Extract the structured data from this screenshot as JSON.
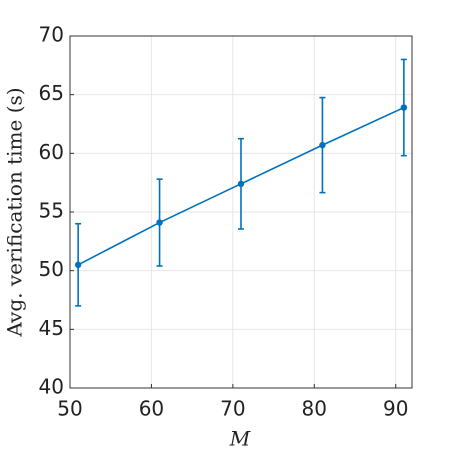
{
  "chart_data": {
    "type": "line",
    "xlabel": "M",
    "ylabel": "Avg. verification time (s)",
    "x": [
      51,
      61,
      71,
      81,
      91
    ],
    "series": [
      {
        "color": "#0072bd",
        "values": [
          50.5,
          54.1,
          57.4,
          60.7,
          63.9
        ],
        "errors": [
          3.5,
          3.7,
          3.85,
          4.05,
          4.1
        ]
      }
    ],
    "xlim": [
      50,
      92
    ],
    "xticks": [
      50,
      60,
      70,
      80,
      90
    ],
    "ylim": [
      40,
      70
    ],
    "yticks": [
      40,
      45,
      50,
      55,
      60,
      65,
      70
    ],
    "grid": true
  }
}
